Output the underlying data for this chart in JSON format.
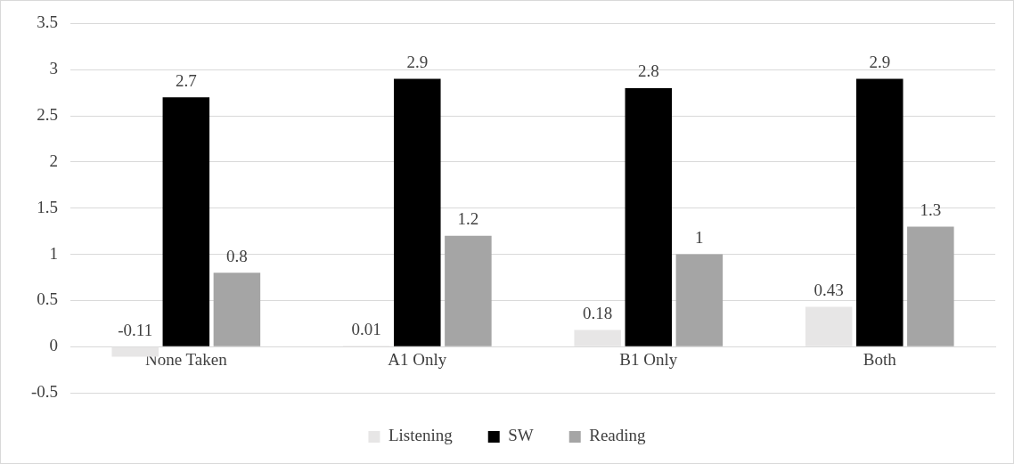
{
  "chart_data": {
    "type": "bar",
    "categories": [
      "None Taken",
      "A1 Only",
      "B1 Only",
      "Both"
    ],
    "series": [
      {
        "name": "Listening",
        "color": "#e7e6e6",
        "values": [
          -0.11,
          0.01,
          0.18,
          0.43
        ]
      },
      {
        "name": "SW",
        "color": "#000000",
        "values": [
          2.7,
          2.9,
          2.8,
          2.9
        ]
      },
      {
        "name": "Reading",
        "color": "#a5a5a5",
        "values": [
          0.8,
          1.2,
          1,
          1.3
        ]
      }
    ],
    "ylim": [
      -0.5,
      3.5
    ],
    "yticks": [
      -0.5,
      0,
      0.5,
      1,
      1.5,
      2,
      2.5,
      3,
      3.5
    ],
    "grid": "y",
    "legend": "bottom",
    "data_labels": true
  }
}
